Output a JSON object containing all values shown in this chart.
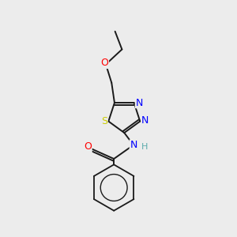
{
  "background_color": "#ececec",
  "bond_color": "#1a1a1a",
  "atom_colors": {
    "O": "#ff0000",
    "N": "#0000ff",
    "S": "#cccc00",
    "H": "#5aabab",
    "C": "#1a1a1a"
  },
  "figsize": [
    3.0,
    3.0
  ],
  "dpi": 100
}
